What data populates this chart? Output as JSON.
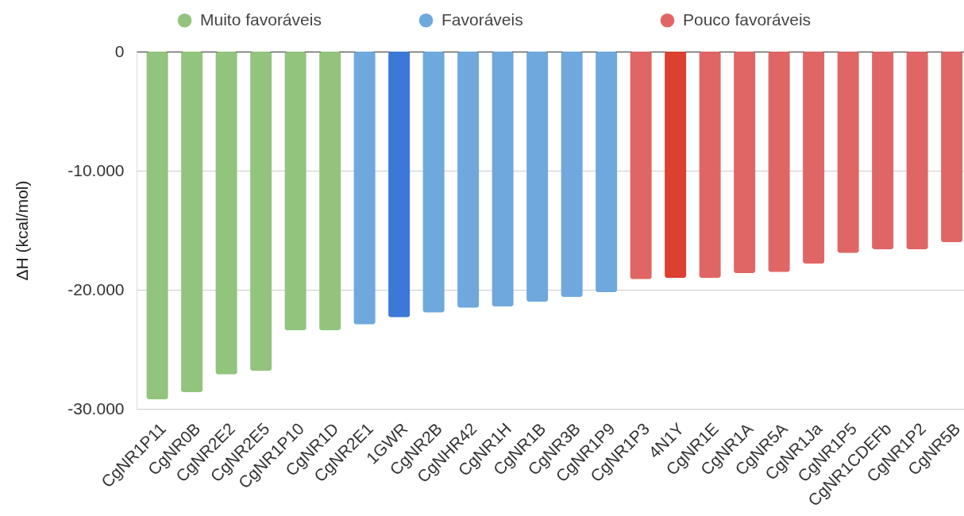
{
  "chart_data": {
    "type": "bar",
    "ylabel": "ΔH (kcal/mol)",
    "categories": [
      "CgNR1P11",
      "CgNR0B",
      "CgNR2E2",
      "CgNR2E5",
      "CgNR1P10",
      "CgNR1D",
      "CgNR2E1",
      "1GWR",
      "CgNR2B",
      "CgNHR42",
      "CgNR1H",
      "CgNR1B",
      "CgNR3B",
      "CgNR1P9",
      "CgNR1P3",
      "4N1Y",
      "CgNR1E",
      "CgNR1A",
      "CgNR5A",
      "CgNR1Ja",
      "CgNR1P5",
      "CgNR1CDEFb",
      "CgNR1P2",
      "CgNR5B"
    ],
    "series": [
      {
        "name": "Muito favoráveis",
        "color": "#93c47d",
        "values": [
          -29200,
          -28600,
          -27100,
          -26800,
          -23400,
          -23400,
          null,
          null,
          null,
          null,
          null,
          null,
          null,
          null,
          null,
          null,
          null,
          null,
          null,
          null,
          null,
          null,
          null,
          null
        ]
      },
      {
        "name": "Favoráveis",
        "color": "#6fa8dc",
        "colors": [
          null,
          null,
          null,
          null,
          null,
          null,
          "#6fa8dc",
          "#3c78d8",
          "#6fa8dc",
          "#6fa8dc",
          "#6fa8dc",
          "#6fa8dc",
          "#6fa8dc",
          "#6fa8dc",
          null,
          null,
          null,
          null,
          null,
          null,
          null,
          null,
          null,
          null
        ],
        "values": [
          null,
          null,
          null,
          null,
          null,
          null,
          -22900,
          -22300,
          -21900,
          -21500,
          -21400,
          -21000,
          -20600,
          -20200,
          null,
          null,
          null,
          null,
          null,
          null,
          null,
          null,
          null,
          null
        ]
      },
      {
        "name": "Pouco favoráveis",
        "color": "#e06666",
        "colors": [
          null,
          null,
          null,
          null,
          null,
          null,
          null,
          null,
          null,
          null,
          null,
          null,
          null,
          null,
          "#e06666",
          "#db4031",
          "#e06666",
          "#e06666",
          "#e06666",
          "#e06666",
          "#e06666",
          "#e06666",
          "#e06666",
          "#e06666"
        ],
        "values": [
          null,
          null,
          null,
          null,
          null,
          null,
          null,
          null,
          null,
          null,
          null,
          null,
          null,
          null,
          -19100,
          -19000,
          -19000,
          -18600,
          -18500,
          -17800,
          -16900,
          -16600,
          -16600,
          -16000
        ]
      }
    ],
    "ylim": [
      -30000,
      0
    ],
    "yticks": [
      0,
      {
        "value": -10000,
        "label": "-10.000"
      },
      {
        "value": -20000,
        "label": "-20.000"
      },
      {
        "value": -30000,
        "label": "-30.000"
      }
    ],
    "grid": "y",
    "legend": "top"
  }
}
